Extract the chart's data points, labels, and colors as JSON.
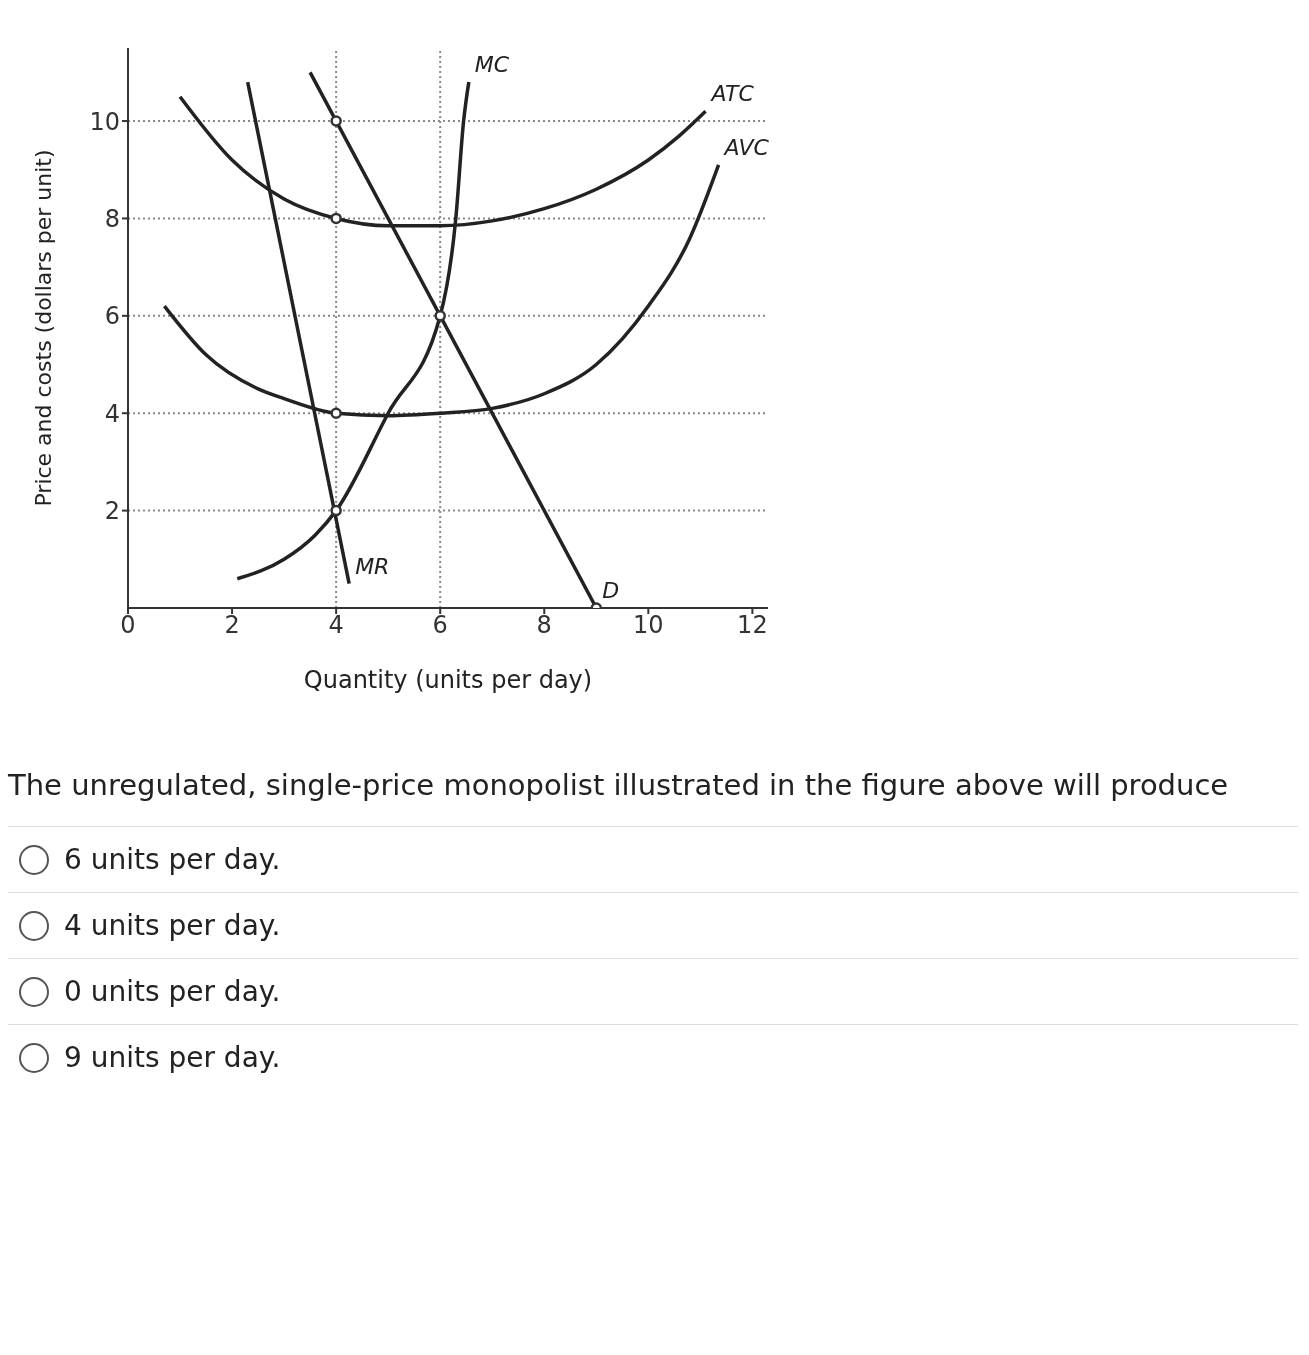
{
  "chart_data": {
    "type": "line",
    "xlabel": "Quantity (units per day)",
    "ylabel": "Price and costs (dollars per unit)",
    "xlim": [
      0,
      12.3
    ],
    "ylim": [
      0,
      11.5
    ],
    "xticks": [
      0,
      2,
      4,
      6,
      8,
      10,
      12
    ],
    "yticks": [
      2,
      4,
      6,
      8,
      10
    ],
    "legend": false,
    "marker": "none",
    "line_style": "solid",
    "series": [
      {
        "name": "MC",
        "color": "#222222",
        "x": [
          2.1,
          3,
          3.6,
          4,
          5,
          6,
          6.3,
          6.45,
          6.55
        ],
        "values": [
          0.6,
          1,
          1.5,
          2,
          4,
          6,
          8,
          10,
          10.8
        ]
      },
      {
        "name": "ATC",
        "color": "#222222",
        "x": [
          1,
          2,
          3,
          4,
          5,
          6,
          7,
          8,
          9,
          10,
          10.6,
          11.1
        ],
        "values": [
          10.5,
          9.2,
          8.4,
          8,
          7.85,
          7.85,
          7.95,
          8.2,
          8.6,
          9.2,
          9.7,
          10.2
        ]
      },
      {
        "name": "AVC",
        "color": "#222222",
        "x": [
          0.7,
          1.5,
          2.5,
          3,
          4,
          5,
          6,
          7,
          8,
          9,
          10,
          10.8,
          11.35
        ],
        "values": [
          6.2,
          5.2,
          4.5,
          4.3,
          4,
          3.95,
          4,
          4.1,
          4.4,
          5,
          6.2,
          7.6,
          9.1
        ]
      },
      {
        "name": "MR",
        "color": "#222222",
        "x": [
          2.3,
          4.25
        ],
        "values": [
          10.8,
          0.5
        ]
      },
      {
        "name": "D",
        "color": "#222222",
        "x": [
          3.5,
          9
        ],
        "values": [
          11,
          0
        ]
      },
      {
        "type": "scatter",
        "marker": "circle",
        "color": "#333333",
        "x": [
          4,
          4,
          6,
          4,
          4,
          9
        ],
        "values": [
          10,
          8,
          6,
          4,
          2,
          0
        ]
      }
    ],
    "ref_lines": [
      {
        "axis": "y",
        "value": 10,
        "line_style": "dotted"
      },
      {
        "axis": "y",
        "value": 8,
        "line_style": "dotted"
      },
      {
        "axis": "y",
        "value": 6,
        "line_style": "dotted"
      },
      {
        "axis": "y",
        "value": 4,
        "line_style": "dotted"
      },
      {
        "axis": "y",
        "value": 2,
        "line_style": "dotted"
      },
      {
        "axis": "x",
        "value": 4,
        "line_style": "dotted"
      },
      {
        "axis": "x",
        "value": 6,
        "line_style": "dotted"
      }
    ],
    "annotations": [
      "The unregulated, single-price monopolist illustrated in the figure above will produce",
      "6 units per day.",
      "4 units per day.",
      "0 units per day.",
      "9 units per day."
    ]
  }
}
